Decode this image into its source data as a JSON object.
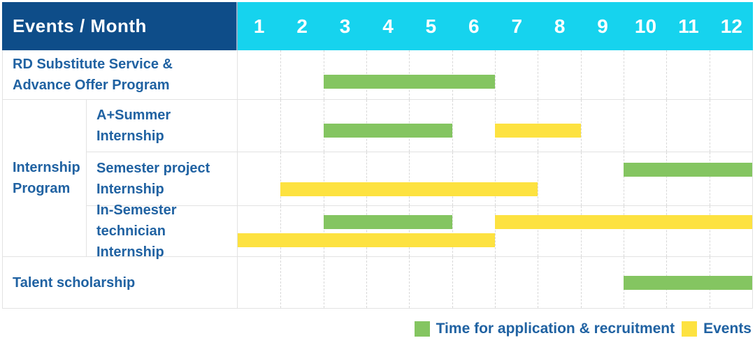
{
  "header": {
    "corner_label": "Events / Month"
  },
  "colors": {
    "header_bg": "#0e4d89",
    "months_bg": "#16d3ee",
    "green": "#84c561",
    "yellow": "#fde240",
    "label_blue": "#2062a2",
    "grid": "#e2e2e2"
  },
  "chart_data": {
    "type": "gantt",
    "title": "Events / Month",
    "months": [
      "1",
      "2",
      "3",
      "4",
      "5",
      "6",
      "7",
      "8",
      "9",
      "10",
      "11",
      "12"
    ],
    "x_range": [
      1,
      12
    ],
    "grid": "dashed-vertical",
    "legend_position": "bottom-right",
    "legend": [
      {
        "color_key": "green",
        "label": "Time for application & recruitment"
      },
      {
        "color_key": "yellow",
        "label": "Events"
      }
    ],
    "group_label_lines": [
      "Internship",
      "Program"
    ],
    "rows": [
      {
        "group": null,
        "label": "RD Substitute Service & Advance Offer Program",
        "label_lines": [
          "RD Substitute Service &",
          "Advance Offer Program"
        ],
        "bars": [
          {
            "color_key": "green",
            "start_month": 3,
            "end_month": 6,
            "lane": "mid"
          }
        ]
      },
      {
        "group": "Internship Program",
        "label": "A+Summer Internship",
        "label_lines": [
          "A+Summer",
          "Internship"
        ],
        "bars": [
          {
            "color_key": "green",
            "start_month": 3,
            "end_month": 5,
            "lane": "mid"
          },
          {
            "color_key": "yellow",
            "start_month": 7,
            "end_month": 8,
            "lane": "mid"
          }
        ]
      },
      {
        "group": "Internship Program",
        "label": "Semester project Internship",
        "label_lines": [
          "Semester project",
          "Internship"
        ],
        "bars": [
          {
            "color_key": "green",
            "start_month": 10,
            "end_month": 12,
            "lane": "top"
          },
          {
            "color_key": "yellow",
            "start_month": 2,
            "end_month": 7,
            "lane": "bottom"
          }
        ]
      },
      {
        "group": "Internship Program",
        "label": "In-Semester technician Internship",
        "label_lines": [
          "In-Semester",
          "technician Internship"
        ],
        "bars": [
          {
            "color_key": "green",
            "start_month": 3,
            "end_month": 5,
            "lane": "top"
          },
          {
            "color_key": "yellow",
            "start_month": 7,
            "end_month": 12,
            "lane": "top"
          },
          {
            "color_key": "yellow",
            "start_month": 1,
            "end_month": 6,
            "lane": "bottom"
          }
        ]
      },
      {
        "group": null,
        "label": "Talent scholarship",
        "label_lines": [
          "Talent scholarship"
        ],
        "bars": [
          {
            "color_key": "green",
            "start_month": 10,
            "end_month": 12,
            "lane": "mid"
          }
        ]
      }
    ]
  }
}
